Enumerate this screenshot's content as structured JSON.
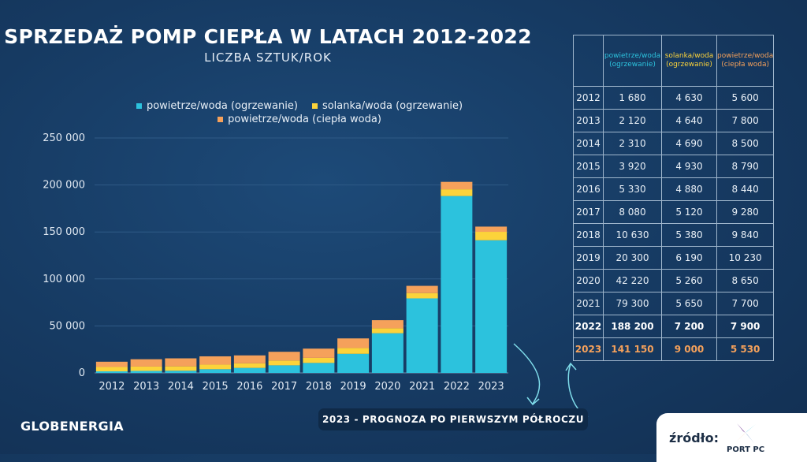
{
  "header": {
    "title": "SPRZEDAŻ POMP CIEPŁA W LATACH 2012-2022",
    "subtitle": "LICZBA SZTUK/ROK"
  },
  "colors": {
    "air_heating": "#2cc2dd",
    "brine_heating": "#fcd33a",
    "air_hot_water": "#f5a15b",
    "forecast_text": "#f5a15b"
  },
  "chart_data": {
    "type": "bar",
    "stacked": true,
    "categories": [
      "2012",
      "2013",
      "2014",
      "2015",
      "2016",
      "2017",
      "2018",
      "2019",
      "2020",
      "2021",
      "2022",
      "2023"
    ],
    "series": [
      {
        "name": "powietrze/woda (ogrzewanie)",
        "values": [
          1680,
          2120,
          2310,
          3920,
          5330,
          8080,
          10630,
          20300,
          42220,
          79300,
          188200,
          141150
        ]
      },
      {
        "name": "solanka/woda (ogrzewanie)",
        "values": [
          4630,
          4640,
          4690,
          4930,
          4880,
          5120,
          5380,
          6190,
          5260,
          5650,
          7200,
          9000
        ]
      },
      {
        "name": "powietrze/woda (ciepła woda)",
        "values": [
          5600,
          7800,
          8500,
          8790,
          8440,
          9280,
          9840,
          10230,
          8650,
          7700,
          7900,
          5530
        ]
      }
    ],
    "y_ticks": [
      "0",
      "50 000",
      "100 000",
      "150 000",
      "200 000",
      "250 000"
    ],
    "ylim": [
      0,
      250000
    ],
    "grid": true,
    "legend_position": "top"
  },
  "table": {
    "headers": [
      "powietrze/woda (ogrzewanie)",
      "solanka/woda (ogrzewanie)",
      "powietrze/woda (ciepła woda)"
    ],
    "rows": [
      {
        "year": "2012",
        "v1": "1 680",
        "v2": "4 630",
        "v3": "5 600"
      },
      {
        "year": "2013",
        "v1": "2 120",
        "v2": "4 640",
        "v3": "7 800"
      },
      {
        "year": "2014",
        "v1": "2 310",
        "v2": "4 690",
        "v3": "8 500"
      },
      {
        "year": "2015",
        "v1": "3 920",
        "v2": "4 930",
        "v3": "8 790"
      },
      {
        "year": "2016",
        "v1": "5 330",
        "v2": "4 880",
        "v3": "8 440"
      },
      {
        "year": "2017",
        "v1": "8 080",
        "v2": "5 120",
        "v3": "9 280"
      },
      {
        "year": "2018",
        "v1": "10 630",
        "v2": "5 380",
        "v3": "9 840"
      },
      {
        "year": "2019",
        "v1": "20 300",
        "v2": "6 190",
        "v3": "10 230"
      },
      {
        "year": "2020",
        "v1": "42 220",
        "v2": "5 260",
        "v3": "8 650"
      },
      {
        "year": "2021",
        "v1": "79 300",
        "v2": "5 650",
        "v3": "7 700"
      },
      {
        "year": "2022",
        "v1": "188 200",
        "v2": "7 200",
        "v3": "7 900"
      },
      {
        "year": "2023",
        "v1": "141 150",
        "v2": "9 000",
        "v3": "5 530"
      }
    ]
  },
  "footer": {
    "forecast_note": "2023 - PROGNOZA PO PIERWSZYM PÓŁROCZU",
    "brand": "GLOBENERGIA",
    "source_label": "źródło:",
    "source_logo_text": "PORT PC",
    "source_logo_icon": "port-pc-logo-icon"
  }
}
